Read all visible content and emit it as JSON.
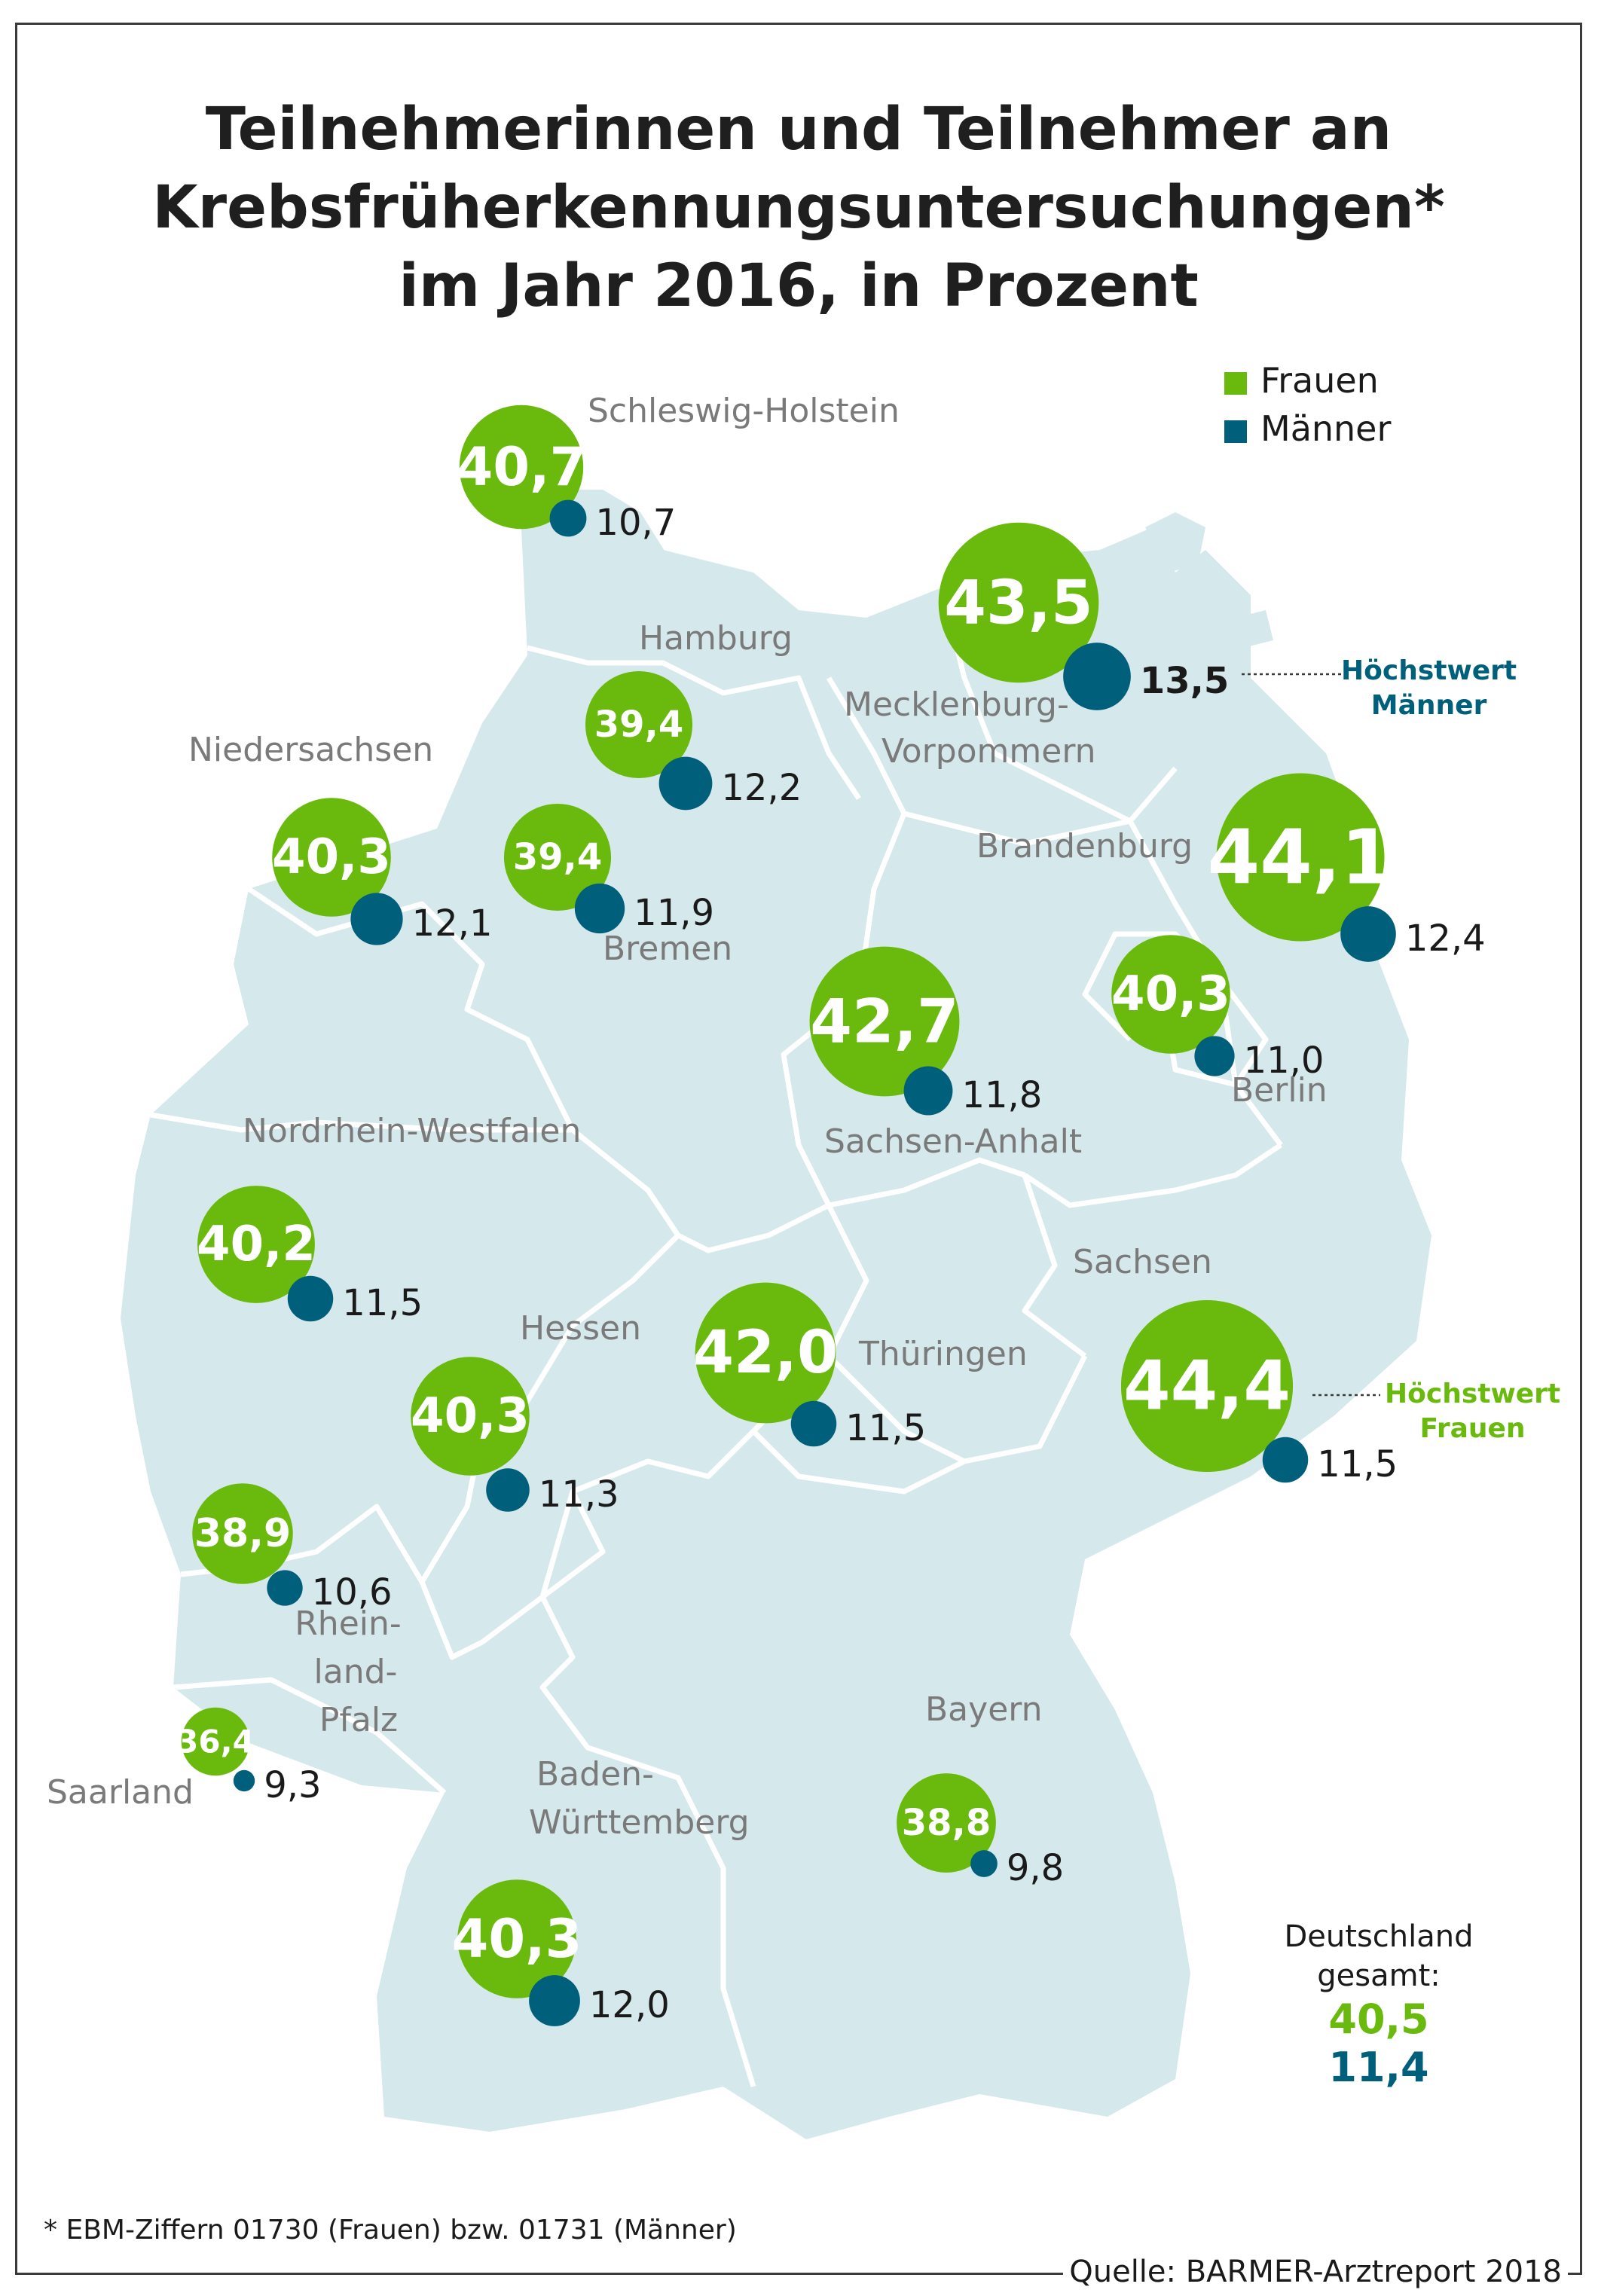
{
  "title": {
    "line1": "Teilnehmerinnen und Teilnehmer an",
    "line2": "Krebsfrüherkennungsuntersuchungen*",
    "line3": "im Jahr 2016, in Prozent"
  },
  "legend": {
    "frauen": "Frauen",
    "maenner": "Männer",
    "frauen_color": "#6ab90d",
    "maenner_color": "#005f7a"
  },
  "states": [
    {
      "key": "sh",
      "label": "Schleswig-Holstein",
      "frauen": "40,7",
      "maenner": "10,7"
    },
    {
      "key": "hh",
      "label": "Hamburg",
      "frauen": "39,4",
      "maenner": "12,2"
    },
    {
      "key": "mv",
      "label": "Mecklenburg-Vorpommern",
      "label_lines": [
        "Mecklenburg-",
        "Vorpommern"
      ],
      "frauen": "43,5",
      "maenner": "13,5"
    },
    {
      "key": "ni",
      "label": "Niedersachsen",
      "frauen": "40,3",
      "maenner": "12,1"
    },
    {
      "key": "hb",
      "label": "Bremen",
      "frauen": "39,4",
      "maenner": "11,9"
    },
    {
      "key": "bb",
      "label": "Brandenburg",
      "frauen": "44,1",
      "maenner": "12,4"
    },
    {
      "key": "st",
      "label": "Sachsen-Anhalt",
      "frauen": "42,7",
      "maenner": "11,8"
    },
    {
      "key": "be",
      "label": "Berlin",
      "frauen": "40,3",
      "maenner": "11,0"
    },
    {
      "key": "nw",
      "label": "Nordrhein-Westfalen",
      "frauen": "40,2",
      "maenner": "11,5"
    },
    {
      "key": "sn",
      "label": "Sachsen",
      "frauen": "44,4",
      "maenner": "11,5"
    },
    {
      "key": "he",
      "label": "Hessen",
      "frauen": "40,3",
      "maenner": "11,3"
    },
    {
      "key": "th",
      "label": "Thüringen",
      "frauen": "42,0",
      "maenner": "11,5"
    },
    {
      "key": "rp",
      "label": "Rheinland-Pfalz",
      "label_lines": [
        "Rhein-",
        "land-",
        "Pfalz"
      ],
      "frauen": "38,9",
      "maenner": "10,6"
    },
    {
      "key": "sl",
      "label": "Saarland",
      "frauen": "36,4",
      "maenner": "9,3"
    },
    {
      "key": "by",
      "label": "Bayern",
      "frauen": "38,8",
      "maenner": "9,8"
    },
    {
      "key": "bw",
      "label": "Baden-Württemberg",
      "label_lines": [
        "Baden-",
        "Württemberg"
      ],
      "frauen": "40,3",
      "maenner": "12,0"
    }
  ],
  "hoechstwert_maenner": {
    "line1": "Höchstwert",
    "line2": "Männer"
  },
  "hoechstwert_frauen": {
    "line1": "Höchstwert",
    "line2": "Frauen"
  },
  "deutschland": {
    "line1": "Deutschland",
    "line2": "gesamt:",
    "frauen": "40,5",
    "maenner": "11,4"
  },
  "footnote": "* EBM-Ziffern 01730 (Frauen) bzw. 01731 (Männer)",
  "source": "Quelle: BARMER-Arztreport 2018"
}
